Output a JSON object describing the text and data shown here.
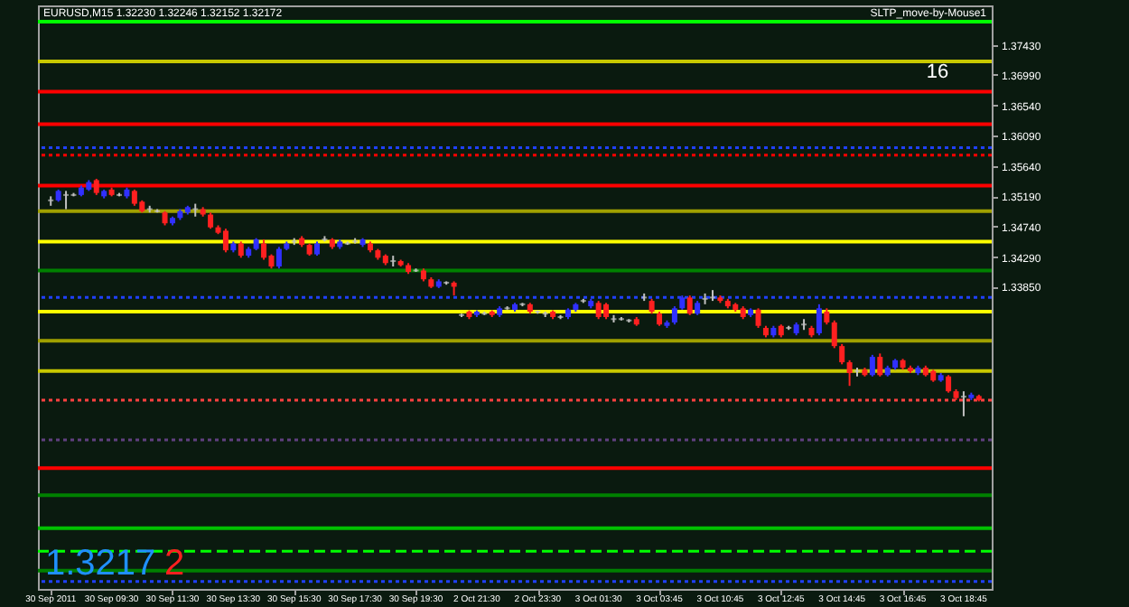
{
  "chart_data": {
    "type": "candlestick",
    "title": "EURUSD,M15  1.32230 1.32246 1.32152 1.32172",
    "categories": [
      "30 Sep 2011",
      null,
      null,
      null,
      null,
      null,
      null,
      null,
      "30 Sep 09:30",
      null,
      null,
      null,
      null,
      null,
      null,
      null,
      "30 Sep 11:30",
      null,
      null,
      null,
      null,
      null,
      null,
      null,
      "30 Sep 13:30",
      null,
      null,
      null,
      null,
      null,
      null,
      null,
      "30 Sep 15:30",
      null,
      null,
      null,
      null,
      null,
      null,
      null,
      "30 Sep 17:30",
      null,
      null,
      null,
      null,
      null,
      null,
      null,
      "30 Sep 19:30",
      null,
      null,
      null,
      null,
      null,
      null,
      null,
      "2 Oct 21:30",
      null,
      null,
      null,
      null,
      null,
      null,
      null,
      "2 Oct 23:30",
      null,
      null,
      null,
      null,
      null,
      null,
      null,
      "3 Oct 01:30",
      null,
      null,
      null,
      null,
      null,
      null,
      null,
      "3 Oct 03:45",
      null,
      null,
      null,
      null,
      null,
      null,
      null,
      "3 Oct 10:45",
      null,
      null,
      null,
      null,
      null,
      null,
      null,
      "3 Oct 12:45",
      null,
      null,
      null,
      null,
      null,
      null,
      null,
      "3 Oct 14:45",
      null,
      null,
      null,
      null,
      null,
      null,
      null,
      "3 Oct 16:45",
      null,
      null,
      null,
      null,
      null,
      null,
      null,
      "3 Oct 18:45",
      null,
      null
    ],
    "ohlc": [
      [
        1.3513,
        1.3519,
        1.3505,
        1.3513
      ],
      [
        1.3513,
        1.3529,
        1.3511,
        1.3527
      ],
      [
        1.3521,
        1.3527,
        1.35,
        1.3521
      ],
      [
        1.3521,
        1.3524,
        1.3519,
        1.3521
      ],
      [
        1.3521,
        1.3535,
        1.3519,
        1.3532
      ],
      [
        1.3529,
        1.3543,
        1.3527,
        1.354
      ],
      [
        1.3543,
        1.3545,
        1.3521,
        1.3524
      ],
      [
        1.3519,
        1.3529,
        1.3516,
        1.3527
      ],
      [
        1.3529,
        1.3532,
        1.3519,
        1.3521
      ],
      [
        1.3521,
        1.3524,
        1.3519,
        1.3521
      ],
      [
        1.3519,
        1.3532,
        1.3516,
        1.3529
      ],
      [
        1.3527,
        1.3529,
        1.3505,
        1.3508
      ],
      [
        1.3511,
        1.3513,
        1.3495,
        1.3497
      ],
      [
        1.35,
        1.3505,
        1.3495,
        1.35
      ],
      [
        1.3497,
        1.35,
        1.3495,
        1.3497
      ],
      [
        1.3495,
        1.3497,
        1.3476,
        1.3479
      ],
      [
        1.3479,
        1.3489,
        1.3476,
        1.3487
      ],
      [
        1.3487,
        1.35,
        1.3484,
        1.3497
      ],
      [
        1.3495,
        1.3505,
        1.3492,
        1.3503
      ],
      [
        1.35,
        1.3508,
        1.3489,
        1.35
      ],
      [
        1.35,
        1.3503,
        1.3489,
        1.3492
      ],
      [
        1.3492,
        1.3495,
        1.3471,
        1.3473
      ],
      [
        1.3473,
        1.3476,
        1.3463,
        1.3465
      ],
      [
        1.3468,
        1.3471,
        1.3436,
        1.3439
      ],
      [
        1.3439,
        1.3452,
        1.3436,
        1.3449
      ],
      [
        1.3449,
        1.3452,
        1.3428,
        1.3431
      ],
      [
        1.3431,
        1.3444,
        1.3428,
        1.3441
      ],
      [
        1.3441,
        1.3457,
        1.3439,
        1.3455
      ],
      [
        1.3449,
        1.3455,
        1.3425,
        1.3428
      ],
      [
        1.3431,
        1.3433,
        1.3412,
        1.3415
      ],
      [
        1.3415,
        1.3444,
        1.3412,
        1.3441
      ],
      [
        1.3441,
        1.3452,
        1.3439,
        1.3449
      ],
      [
        1.3452,
        1.3457,
        1.3447,
        1.3452
      ],
      [
        1.3457,
        1.346,
        1.3444,
        1.3447
      ],
      [
        1.3447,
        1.3449,
        1.3431,
        1.3433
      ],
      [
        1.3433,
        1.3452,
        1.3431,
        1.3449
      ],
      [
        1.3455,
        1.346,
        1.3452,
        1.3455
      ],
      [
        1.3455,
        1.3457,
        1.3441,
        1.3444
      ],
      [
        1.3444,
        1.3455,
        1.3441,
        1.3452
      ],
      [
        1.3449,
        1.3452,
        1.3447,
        1.3449
      ],
      [
        1.3452,
        1.3457,
        1.3449,
        1.3452
      ],
      [
        1.3447,
        1.3457,
        1.3444,
        1.3455
      ],
      [
        1.3449,
        1.3452,
        1.3436,
        1.3439
      ],
      [
        1.3439,
        1.3441,
        1.3425,
        1.3428
      ],
      [
        1.3431,
        1.3433,
        1.3417,
        1.342
      ],
      [
        1.3423,
        1.3431,
        1.3415,
        1.3423
      ],
      [
        1.3423,
        1.3425,
        1.3415,
        1.3417
      ],
      [
        1.3417,
        1.342,
        1.3404,
        1.3407
      ],
      [
        1.3409,
        1.3412,
        1.3407,
        1.3409
      ],
      [
        1.3409,
        1.3412,
        1.3393,
        1.3396
      ],
      [
        1.3396,
        1.3399,
        1.3383,
        1.3385
      ],
      [
        1.3385,
        1.3396,
        1.3383,
        1.3393
      ],
      [
        1.3391,
        1.3393,
        1.3388,
        1.3391
      ],
      [
        1.3391,
        1.3393,
        1.3372,
        1.3385
      ],
      [
        1.3343,
        1.3345,
        1.334,
        1.3343
      ],
      [
        1.3348,
        1.335,
        1.3337,
        1.334
      ],
      [
        1.3343,
        1.335,
        1.334,
        1.3348
      ],
      [
        1.3345,
        1.3348,
        1.3343,
        1.3345
      ],
      [
        1.3348,
        1.335,
        1.334,
        1.3343
      ],
      [
        1.3343,
        1.3356,
        1.334,
        1.3353
      ],
      [
        1.3353,
        1.3356,
        1.3351,
        1.3353
      ],
      [
        1.3351,
        1.3361,
        1.3348,
        1.3359
      ],
      [
        1.3359,
        1.3361,
        1.3356,
        1.3359
      ],
      [
        1.3359,
        1.3361,
        1.3345,
        1.3348
      ],
      [
        1.3348,
        1.335,
        1.3345,
        1.3348
      ],
      [
        1.3345,
        1.3348,
        1.334,
        1.3345
      ],
      [
        1.3348,
        1.335,
        1.3337,
        1.334
      ],
      [
        1.334,
        1.3343,
        1.3337,
        1.334
      ],
      [
        1.334,
        1.3353,
        1.3337,
        1.3351
      ],
      [
        1.3351,
        1.3361,
        1.3348,
        1.3359
      ],
      [
        1.3364,
        1.3367,
        1.3361,
        1.3364
      ],
      [
        1.3356,
        1.3367,
        1.3353,
        1.3364
      ],
      [
        1.3361,
        1.3364,
        1.3337,
        1.334
      ],
      [
        1.3359,
        1.3361,
        1.3337,
        1.334
      ],
      [
        1.3337,
        1.3343,
        1.3332,
        1.3337
      ],
      [
        1.3337,
        1.334,
        1.3335,
        1.3337
      ],
      [
        1.3335,
        1.3337,
        1.3332,
        1.3335
      ],
      [
        1.3337,
        1.334,
        1.3327,
        1.3329
      ],
      [
        1.3369,
        1.3375,
        1.3364,
        1.3369
      ],
      [
        1.3364,
        1.3367,
        1.3345,
        1.3348
      ],
      [
        1.3345,
        1.3348,
        1.3327,
        1.3329
      ],
      [
        1.3327,
        1.3335,
        1.3324,
        1.3332
      ],
      [
        1.3332,
        1.3356,
        1.3329,
        1.3353
      ],
      [
        1.3353,
        1.3372,
        1.3351,
        1.3369
      ],
      [
        1.3369,
        1.3372,
        1.3343,
        1.3345
      ],
      [
        1.3345,
        1.3364,
        1.3343,
        1.3361
      ],
      [
        1.3367,
        1.3375,
        1.3359,
        1.3367
      ],
      [
        1.3369,
        1.338,
        1.3364,
        1.3369
      ],
      [
        1.3369,
        1.3372,
        1.3361,
        1.3364
      ],
      [
        1.3364,
        1.3367,
        1.3353,
        1.3356
      ],
      [
        1.3359,
        1.3361,
        1.3348,
        1.3351
      ],
      [
        1.3353,
        1.3356,
        1.3337,
        1.334
      ],
      [
        1.3343,
        1.3353,
        1.334,
        1.3351
      ],
      [
        1.3351,
        1.3353,
        1.3324,
        1.3327
      ],
      [
        1.3324,
        1.3327,
        1.331,
        1.3313
      ],
      [
        1.3313,
        1.3327,
        1.331,
        1.3324
      ],
      [
        1.3327,
        1.3329,
        1.331,
        1.3313
      ],
      [
        1.3324,
        1.3327,
        1.3321,
        1.3324
      ],
      [
        1.3316,
        1.3332,
        1.3313,
        1.3329
      ],
      [
        1.3329,
        1.3337,
        1.3321,
        1.3329
      ],
      [
        1.3324,
        1.3327,
        1.331,
        1.3313
      ],
      [
        1.3316,
        1.3359,
        1.3313,
        1.3353
      ],
      [
        1.3348,
        1.3353,
        1.3329,
        1.3332
      ],
      [
        1.3332,
        1.3335,
        1.3294,
        1.3297
      ],
      [
        1.3297,
        1.33,
        1.327,
        1.3273
      ],
      [
        1.3273,
        1.3276,
        1.3238,
        1.3257
      ],
      [
        1.326,
        1.3265,
        1.3252,
        1.326
      ],
      [
        1.3262,
        1.3265,
        1.3252,
        1.3254
      ],
      [
        1.3254,
        1.3284,
        1.3252,
        1.3281
      ],
      [
        1.3281,
        1.3286,
        1.3252,
        1.3254
      ],
      [
        1.3254,
        1.3268,
        1.3252,
        1.3265
      ],
      [
        1.3265,
        1.3278,
        1.3262,
        1.3276
      ],
      [
        1.3276,
        1.3278,
        1.3262,
        1.3265
      ],
      [
        1.3265,
        1.3268,
        1.3257,
        1.326
      ],
      [
        1.3257,
        1.3268,
        1.3254,
        1.3265
      ],
      [
        1.3265,
        1.3268,
        1.3252,
        1.3254
      ],
      [
        1.326,
        1.3262,
        1.3244,
        1.3246
      ],
      [
        1.3246,
        1.3257,
        1.3244,
        1.3254
      ],
      [
        1.3252,
        1.3254,
        1.3228,
        1.323
      ],
      [
        1.323,
        1.3233,
        1.3217,
        1.322
      ],
      [
        1.3222,
        1.323,
        1.3193,
        1.3222
      ],
      [
        1.322,
        1.3228,
        1.3217,
        1.3225
      ],
      [
        1.3223,
        1.3225,
        1.3215,
        1.3217
      ]
    ],
    "colors": [
      "#c0c0c0",
      "#3030ff",
      "#c0c0c0",
      "#c0c0c0",
      "#3030ff",
      "#3030ff",
      "#ff2020",
      "#3030ff",
      "#ff2020",
      "#c0c0c0",
      "#3030ff",
      "#ff2020",
      "#ff2020",
      "#c0c0c0",
      "#c0c0c0",
      "#ff2020",
      "#3030ff",
      "#3030ff",
      "#3030ff",
      "#c0c0c0",
      "#ff2020",
      "#ff2020",
      "#ff2020",
      "#ff2020",
      "#3030ff",
      "#ff2020",
      "#3030ff",
      "#3030ff",
      "#ff2020",
      "#ff2020",
      "#3030ff",
      "#3030ff",
      "#c0c0c0",
      "#ff2020",
      "#ff2020",
      "#3030ff",
      "#c0c0c0",
      "#ff2020",
      "#3030ff",
      "#c0c0c0",
      "#c0c0c0",
      "#3030ff",
      "#ff2020",
      "#ff2020",
      "#ff2020",
      "#c0c0c0",
      "#ff2020",
      "#ff2020",
      "#c0c0c0",
      "#ff2020",
      "#ff2020",
      "#3030ff",
      "#c0c0c0",
      "#ff2020",
      "#c0c0c0",
      "#ff2020",
      "#3030ff",
      "#c0c0c0",
      "#ff2020",
      "#3030ff",
      "#c0c0c0",
      "#3030ff",
      "#c0c0c0",
      "#ff2020",
      "#c0c0c0",
      "#c0c0c0",
      "#ff2020",
      "#c0c0c0",
      "#3030ff",
      "#3030ff",
      "#c0c0c0",
      "#3030ff",
      "#ff2020",
      "#ff2020",
      "#c0c0c0",
      "#c0c0c0",
      "#c0c0c0",
      "#ff2020",
      "#c0c0c0",
      "#ff2020",
      "#ff2020",
      "#3030ff",
      "#3030ff",
      "#3030ff",
      "#ff2020",
      "#3030ff",
      "#c0c0c0",
      "#c0c0c0",
      "#ff2020",
      "#ff2020",
      "#ff2020",
      "#ff2020",
      "#3030ff",
      "#ff2020",
      "#ff2020",
      "#3030ff",
      "#ff2020",
      "#c0c0c0",
      "#3030ff",
      "#c0c0c0",
      "#ff2020",
      "#3030ff",
      "#ff2020",
      "#ff2020",
      "#ff2020",
      "#ff2020",
      "#c0c0c0",
      "#ff2020",
      "#3030ff",
      "#ff2020",
      "#3030ff",
      "#3030ff",
      "#ff2020",
      "#ff2020",
      "#3030ff",
      "#ff2020",
      "#ff2020",
      "#3030ff",
      "#ff2020",
      "#ff2020",
      "#c0c0c0",
      "#3030ff",
      "#ff2020"
    ],
    "ylim": [
      1.2937,
      1.3802
    ],
    "yticks": [
      {
        "value": 1.3743,
        "label": "1.37430"
      },
      {
        "value": 1.3699,
        "label": "1.36990"
      },
      {
        "value": 1.3654,
        "label": "1.36540"
      },
      {
        "value": 1.3609,
        "label": "1.36090"
      },
      {
        "value": 1.3564,
        "label": "1.35640"
      },
      {
        "value": 1.3519,
        "label": "1.35190"
      },
      {
        "value": 1.3474,
        "label": "1.34740"
      },
      {
        "value": 1.3429,
        "label": "1.34290"
      },
      {
        "value": 1.3385,
        "label": "1.33850"
      }
    ],
    "ref_lines": [
      {
        "axis": "y",
        "value": 1.3778,
        "color": "#00ff00",
        "line_style": "solid"
      },
      {
        "axis": "y",
        "value": 1.3719,
        "color": "#c8c800",
        "line_style": "solid"
      },
      {
        "axis": "y",
        "value": 1.3674,
        "color": "#ff0000",
        "line_style": "solid"
      },
      {
        "axis": "y",
        "value": 1.3626,
        "color": "#ff0000",
        "line_style": "solid"
      },
      {
        "axis": "y",
        "value": 1.3591,
        "color": "#2040ff",
        "line_style": "dotted"
      },
      {
        "axis": "y",
        "value": 1.358,
        "color": "#ff0000",
        "line_style": "dotted"
      },
      {
        "axis": "y",
        "value": 1.3535,
        "color": "#ff0000",
        "line_style": "solid"
      },
      {
        "axis": "y",
        "value": 1.3497,
        "color": "#a0a000",
        "line_style": "solid"
      },
      {
        "axis": "y",
        "value": 1.3452,
        "color": "#ffff00",
        "line_style": "solid"
      },
      {
        "axis": "y",
        "value": 1.3409,
        "color": "#008000",
        "line_style": "solid"
      },
      {
        "axis": "y",
        "value": 1.3369,
        "color": "#2040ff",
        "line_style": "dotted"
      },
      {
        "axis": "y",
        "value": 1.3348,
        "color": "#ffff00",
        "line_style": "solid"
      },
      {
        "axis": "y",
        "value": 1.3305,
        "color": "#a0a000",
        "line_style": "solid"
      },
      {
        "axis": "y",
        "value": 1.326,
        "color": "#c8c800",
        "line_style": "solid"
      },
      {
        "axis": "y",
        "value": 1.3217,
        "color": "#ff4040",
        "line_style": "dotted"
      },
      {
        "axis": "y",
        "value": 1.3158,
        "color": "#604080",
        "line_style": "dotted"
      },
      {
        "axis": "y",
        "value": 1.3116,
        "color": "#ff0000",
        "line_style": "solid"
      },
      {
        "axis": "y",
        "value": 1.3076,
        "color": "#008000",
        "line_style": "solid"
      },
      {
        "axis": "y",
        "value": 1.3027,
        "color": "#00c000",
        "line_style": "solid"
      },
      {
        "axis": "y",
        "value": 1.2993,
        "color": "#00ff00",
        "line_style": "dashed"
      },
      {
        "axis": "y",
        "value": 1.2964,
        "color": "#008000",
        "line_style": "solid"
      },
      {
        "axis": "y",
        "value": 1.2948,
        "color": "#2040ff",
        "line_style": "dotted"
      }
    ],
    "annotations": [
      "SLTP_move-by-Mouse1",
      "16",
      "1.3217",
      "2"
    ],
    "grid": false
  }
}
